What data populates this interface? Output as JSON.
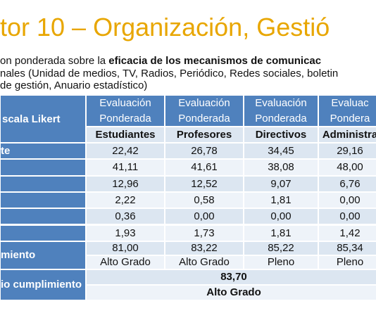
{
  "title": "tor 10 – Organización, Gestió",
  "intro": {
    "line1_start": "on ponderada sobre la ",
    "line1_bold": "eficacia de los mecanismos de comunicac",
    "line2": "nales (Unidad de medios, TV, Radios, Periódico, Redes sociales, boletin",
    "line3": "de gestión, Anuario estadístico)"
  },
  "table": {
    "corner": "scala Likert",
    "headers": [
      [
        "Evaluación",
        "Ponderada"
      ],
      [
        "Evaluación",
        "Ponderada"
      ],
      [
        "Evaluación",
        "Ponderada"
      ],
      [
        "Evaluac",
        "Pondera"
      ]
    ],
    "subheaders": [
      "Estudiantes",
      "Profesores",
      "Directivos",
      "Administra"
    ],
    "rows": [
      {
        "label": "te",
        "values": [
          "22,42",
          "26,78",
          "34,45",
          "29,16"
        ]
      },
      {
        "values": [
          "41,11",
          "41,61",
          "38,08",
          "48,00"
        ]
      },
      {
        "values": [
          "12,96",
          "12,52",
          "9,07",
          "6,76"
        ]
      },
      {
        "values": [
          "2,22",
          "0,58",
          "1,81",
          "0,00"
        ]
      },
      {
        "values": [
          "0,36",
          "0,00",
          "0,00",
          "0,00"
        ]
      },
      {
        "values": [
          "1,93",
          "1,73",
          "1,81",
          "1,42"
        ]
      }
    ],
    "compliance": {
      "label": "miento",
      "values": [
        "81,00",
        "83,22",
        "85,22",
        "85,34"
      ],
      "grades": [
        "Alto Grado",
        "Alto Grado",
        "Pleno",
        "Pleno"
      ]
    },
    "average": {
      "label": "io cumplimiento",
      "value": "83,70",
      "grade": "Alto Grado"
    }
  }
}
